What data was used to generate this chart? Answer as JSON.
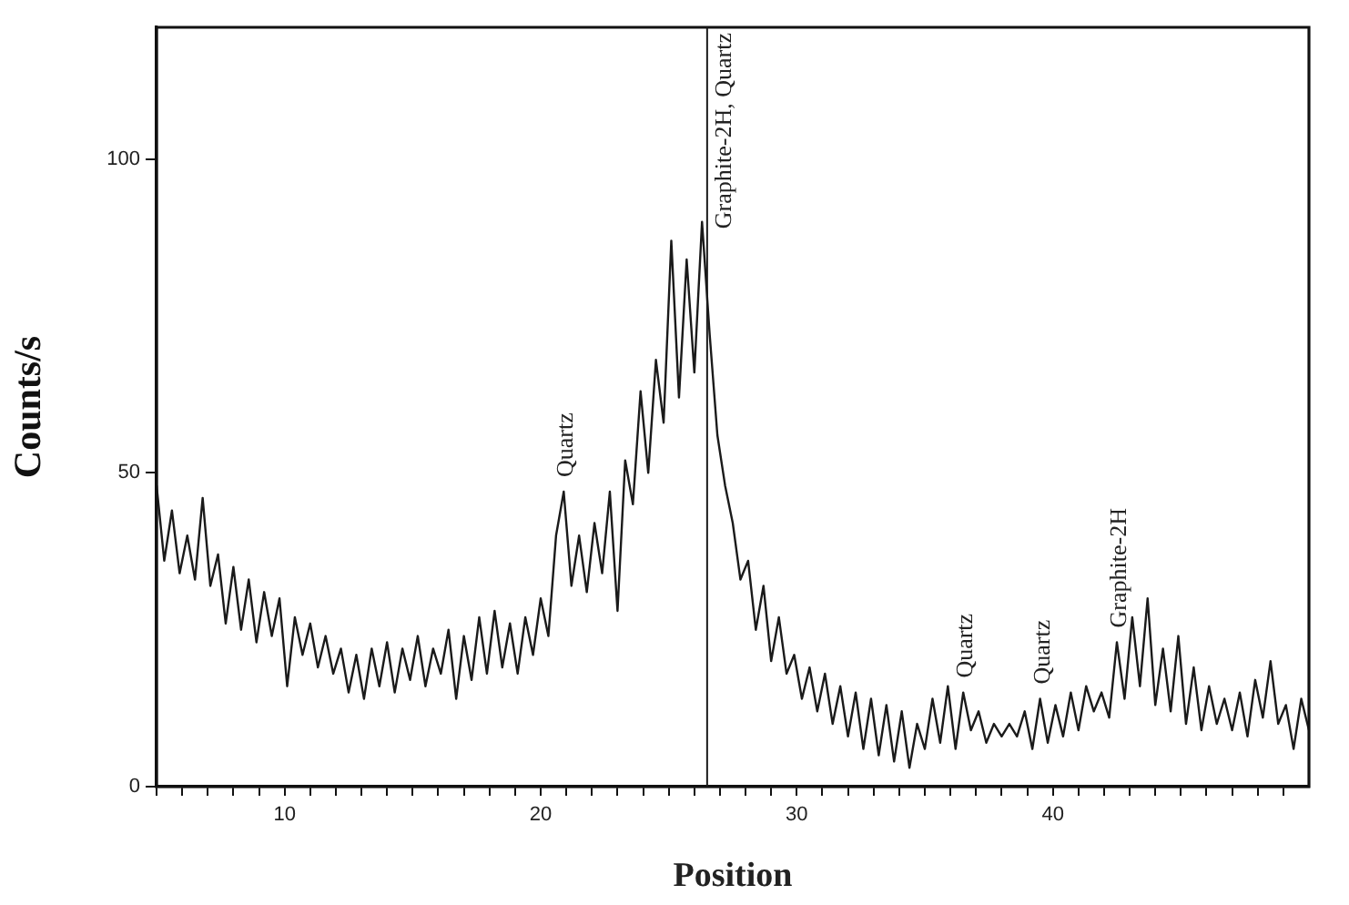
{
  "chart_data": {
    "type": "line",
    "xlabel": "Position",
    "ylabel": "Counts/s",
    "x": [
      5.0,
      5.3,
      5.6,
      5.9,
      6.2,
      6.5,
      6.8,
      7.1,
      7.4,
      7.7,
      8.0,
      8.3,
      8.6,
      8.9,
      9.2,
      9.5,
      9.8,
      10.1,
      10.4,
      10.7,
      11.0,
      11.3,
      11.6,
      11.9,
      12.2,
      12.5,
      12.8,
      13.1,
      13.4,
      13.7,
      14.0,
      14.3,
      14.6,
      14.9,
      15.2,
      15.5,
      15.8,
      16.1,
      16.4,
      16.7,
      17.0,
      17.3,
      17.6,
      17.9,
      18.2,
      18.5,
      18.8,
      19.1,
      19.4,
      19.7,
      20.0,
      20.3,
      20.6,
      20.9,
      21.2,
      21.5,
      21.8,
      22.1,
      22.4,
      22.7,
      23.0,
      23.3,
      23.6,
      23.9,
      24.2,
      24.5,
      24.8,
      25.1,
      25.4,
      25.7,
      26.0,
      26.3,
      26.6,
      26.9,
      27.2,
      27.5,
      27.8,
      28.1,
      28.4,
      28.7,
      29.0,
      29.3,
      29.6,
      29.9,
      30.2,
      30.5,
      30.8,
      31.1,
      31.4,
      31.7,
      32.0,
      32.3,
      32.6,
      32.9,
      33.2,
      33.5,
      33.8,
      34.1,
      34.4,
      34.7,
      35.0,
      35.3,
      35.6,
      35.9,
      36.2,
      36.5,
      36.8,
      37.1,
      37.4,
      37.7,
      38.0,
      38.3,
      38.6,
      38.9,
      39.2,
      39.5,
      39.8,
      40.1,
      40.4,
      40.7,
      41.0,
      41.3,
      41.6,
      41.9,
      42.2,
      42.5,
      42.8,
      43.1,
      43.4,
      43.7,
      44.0,
      44.3,
      44.6,
      44.9,
      45.2,
      45.5,
      45.8,
      46.1,
      46.4,
      46.7,
      47.0,
      47.3,
      47.6,
      47.9,
      48.2,
      48.5,
      48.8,
      49.1,
      49.4,
      49.7,
      50.0
    ],
    "series": [
      {
        "color": "#1a1a1a",
        "values": [
          48,
          36,
          44,
          34,
          40,
          33,
          46,
          32,
          37,
          26,
          35,
          25,
          33,
          23,
          31,
          24,
          30,
          16,
          27,
          21,
          26,
          19,
          24,
          18,
          22,
          15,
          21,
          14,
          22,
          16,
          23,
          15,
          22,
          17,
          24,
          16,
          22,
          18,
          25,
          14,
          24,
          17,
          27,
          18,
          28,
          19,
          26,
          18,
          27,
          21,
          30,
          24,
          40,
          47,
          32,
          40,
          31,
          42,
          34,
          47,
          28,
          52,
          45,
          63,
          50,
          68,
          58,
          87,
          62,
          84,
          66,
          90,
          72,
          56,
          48,
          42,
          33,
          36,
          25,
          32,
          20,
          27,
          18,
          21,
          14,
          19,
          12,
          18,
          10,
          16,
          8,
          15,
          6,
          14,
          5,
          13,
          4,
          12,
          3,
          10,
          6,
          14,
          7,
          16,
          6,
          15,
          9,
          12,
          7,
          10,
          8,
          10,
          8,
          12,
          6,
          14,
          7,
          13,
          8,
          15,
          9,
          16,
          12,
          15,
          11,
          23,
          14,
          27,
          16,
          30,
          13,
          22,
          12,
          24,
          10,
          19,
          9,
          16,
          10,
          14,
          9,
          15,
          8,
          17,
          11,
          20,
          10,
          13,
          6,
          14,
          9
        ]
      }
    ],
    "xlim": [
      5,
      50
    ],
    "xticks": [
      {
        "value": 5,
        "label": null
      },
      {
        "value": 6,
        "label": null
      },
      {
        "value": 7,
        "label": null
      },
      {
        "value": 8,
        "label": null
      },
      {
        "value": 9,
        "label": null
      },
      10,
      {
        "value": 11,
        "label": null
      },
      {
        "value": 12,
        "label": null
      },
      {
        "value": 13,
        "label": null
      },
      {
        "value": 14,
        "label": null
      },
      {
        "value": 15,
        "label": null
      },
      {
        "value": 16,
        "label": null
      },
      {
        "value": 17,
        "label": null
      },
      {
        "value": 18,
        "label": null
      },
      {
        "value": 19,
        "label": null
      },
      20,
      {
        "value": 21,
        "label": null
      },
      {
        "value": 22,
        "label": null
      },
      {
        "value": 23,
        "label": null
      },
      {
        "value": 24,
        "label": null
      },
      {
        "value": 25,
        "label": null
      },
      {
        "value": 26,
        "label": null
      },
      {
        "value": 27,
        "label": null
      },
      {
        "value": 28,
        "label": null
      },
      {
        "value": 29,
        "label": null
      },
      30,
      {
        "value": 31,
        "label": null
      },
      {
        "value": 32,
        "label": null
      },
      {
        "value": 33,
        "label": null
      },
      {
        "value": 34,
        "label": null
      },
      {
        "value": 35,
        "label": null
      },
      {
        "value": 36,
        "label": null
      },
      {
        "value": 37,
        "label": null
      },
      {
        "value": 38,
        "label": null
      },
      {
        "value": 39,
        "label": null
      },
      40,
      {
        "value": 41,
        "label": null
      },
      {
        "value": 42,
        "label": null
      },
      {
        "value": 43,
        "label": null
      },
      {
        "value": 44,
        "label": null
      },
      {
        "value": 45,
        "label": null
      },
      {
        "value": 46,
        "label": null
      },
      {
        "value": 47,
        "label": null
      },
      {
        "value": 48,
        "label": null
      },
      {
        "value": 49,
        "label": null
      }
    ],
    "ylim": [
      0,
      121
    ],
    "yticks": [
      0,
      50,
      100
    ],
    "ref_lines": [
      {
        "axis": "x",
        "value": 26.5,
        "label": "Graphite-2H, Quartz",
        "color": "#1a1a1a"
      }
    ],
    "annotations": [
      {
        "text": "Quartz",
        "x": 20.9,
        "y": 47
      },
      {
        "text": "Quartz",
        "x": 36.5,
        "y": 15
      },
      {
        "text": "Quartz",
        "x": 39.5,
        "y": 14
      },
      {
        "text": "Graphite-2H",
        "x": 42.5,
        "y": 23
      }
    ],
    "grid": false,
    "legend": false,
    "marker": "none",
    "line_style": "solid"
  }
}
